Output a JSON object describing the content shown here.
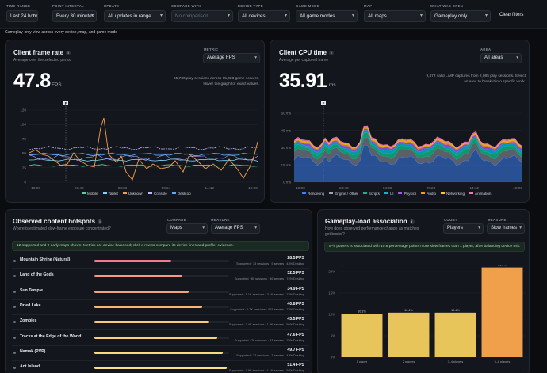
{
  "filters": [
    {
      "label": "TIME RANGE",
      "value": "Last 24 hours",
      "muted": false
    },
    {
      "label": "POINT INTERVAL",
      "value": "Every 30 minutes",
      "muted": false
    },
    {
      "label": "UPDATE",
      "value": "All updates in range",
      "muted": false
    },
    {
      "label": "COMPARE WITH",
      "value": "No comparison",
      "muted": true
    },
    {
      "label": "DEVICE TYPE",
      "value": "All devices",
      "muted": false
    },
    {
      "label": "GAME MODE",
      "value": "All game modes",
      "muted": false
    },
    {
      "label": "MAP",
      "value": "All maps",
      "muted": false
    },
    {
      "label": "WHAT WAS OPEN",
      "value": "Gameplay only",
      "muted": false
    }
  ],
  "clear_filters": "Clear filters",
  "scope_note": "Gameplay-only view across every device, map, and game mode",
  "frame_rate": {
    "title": "Client frame rate",
    "subtitle": "Average over the selected period",
    "metric_label": "METRIC",
    "metric_value": "Average FPS",
    "value": "47.8",
    "unit": "FPS",
    "note": "65,736 play sessions across 65,028 game servers. Hover the graph for exact values.",
    "y_ticks": [
      "120",
      "100",
      "75",
      "50",
      "25",
      "0"
    ],
    "x_ticks": [
      "19:00",
      "23:48",
      "04:36",
      "09:24",
      "14:12",
      "19:00"
    ],
    "marker": "F",
    "legend": [
      {
        "name": "Mobile",
        "color": "#4fd1a5"
      },
      {
        "name": "Tablet",
        "color": "#7dd3fc"
      },
      {
        "name": "Unknown",
        "color": "#f59e4c"
      },
      {
        "name": "Console",
        "color": "#c4b5fd"
      },
      {
        "name": "Desktop",
        "color": "#60a5fa"
      }
    ]
  },
  "cpu_time": {
    "title": "Client CPU time",
    "subtitle": "Average per captured frame",
    "area_label": "AREA",
    "area_value": "All areas",
    "value": "35.91",
    "unit": "ms",
    "note": "9,472 valid LiMP captures from 2,085 play sessions. Select an area to break it into specific work.",
    "y_ticks": [
      "60 ms",
      "45 ms",
      "30 ms",
      "15 ms",
      "0 ms"
    ],
    "x_ticks": [
      "19:00",
      "23:48",
      "04:36",
      "09:24",
      "14:12",
      "19:00"
    ],
    "marker": "F",
    "legend": [
      {
        "name": "Rendering",
        "color": "#3b82f6"
      },
      {
        "name": "Engine / Other",
        "color": "#9ca3af"
      },
      {
        "name": "Scripts",
        "color": "#10b981"
      },
      {
        "name": "UI",
        "color": "#06b6d4"
      },
      {
        "name": "Physics",
        "color": "#a855f7"
      },
      {
        "name": "Audio",
        "color": "#f59e0b"
      },
      {
        "name": "Networking",
        "color": "#facc15"
      },
      {
        "name": "Animation",
        "color": "#f472b6"
      }
    ]
  },
  "hotspots": {
    "title": "Observed content hotspots",
    "subtitle": "Where is estimated slow-frame exposure concentrated?",
    "compare_label": "COMPARE",
    "compare_value": "Maps",
    "measure_label": "MEASURE",
    "measure_value": "Average FPS",
    "note": "12 supported and 0 early maps shown. Metrics are device-balanced; click a row to compare its device lines and profiler evidence.",
    "rows": [
      {
        "name": "Mountain Shrine (Natural)",
        "value": "28.5 FPS",
        "meta": "Supported · 13 sessions · 9 servers · 43% Desktop",
        "pct": 0.57,
        "color": "#f07b8a"
      },
      {
        "name": "Land of the Gods",
        "value": "32.5 FPS",
        "meta": "Supported · 80 sessions · 46 servers · 74% Desktop",
        "pct": 0.65,
        "color": "#f59a80"
      },
      {
        "name": "Sun Temple",
        "value": "34.9 FPS",
        "meta": "Supported · 5.1K sessions · 3.1K servers · 73% Desktop",
        "pct": 0.7,
        "color": "#f6a57a"
      },
      {
        "name": "Dried Lake",
        "value": "40.8 FPS",
        "meta": "Supported · 1.3K sessions · 921 servers · 72% Desktop",
        "pct": 0.8,
        "color": "#f7b777"
      },
      {
        "name": "Zombies",
        "value": "43.5 FPS",
        "meta": "Supported · 3.4K sessions · 1.9K servers · 56% Desktop",
        "pct": 0.85,
        "color": "#f8c879"
      },
      {
        "name": "Tracks at the Edge of the World",
        "value": "47.6 FPS",
        "meta": "Supported · 78 sessions · 43 servers · 75% Desktop",
        "pct": 0.91,
        "color": "#f8d27c"
      },
      {
        "name": "Namak (PVP)",
        "value": "49.7 FPS",
        "meta": "Supported · 12 sessions · 7 servers · 43% Desktop",
        "pct": 0.95,
        "color": "#f8d980"
      },
      {
        "name": "Ant Island",
        "value": "51.4 FPS",
        "meta": "Supported · 1.9K sessions · 1.1K servers · 58% Desktop",
        "pct": 0.98,
        "color": "#f8de84"
      }
    ]
  },
  "association": {
    "title": "Gameplay-load association",
    "subtitle": "How does observed performance change as matches get busier?",
    "count_label": "COUNT",
    "count_value": "Players",
    "measure_label": "MEASURE",
    "measure_value": "Slow frames",
    "note": "5–8 players is associated with 10.8 percentage points more slow frames than 1 player, after balancing device mix.",
    "y_ticks": [
      "20%",
      "15%",
      "10%",
      "5%",
      "0%"
    ],
    "chart_data": {
      "type": "bar",
      "categories": [
        "1 player",
        "2 players",
        "3–4 players",
        "5–8 players"
      ],
      "values": [
        10.1,
        10.4,
        10.4,
        21.0
      ],
      "value_labels": [
        "10.1%",
        "10.4%",
        "10.4%",
        "21.0%"
      ],
      "ylim": [
        0,
        22
      ],
      "colors": [
        "#e8c55a",
        "#e8c55a",
        "#e8c55a",
        "#f0a04a"
      ]
    }
  }
}
